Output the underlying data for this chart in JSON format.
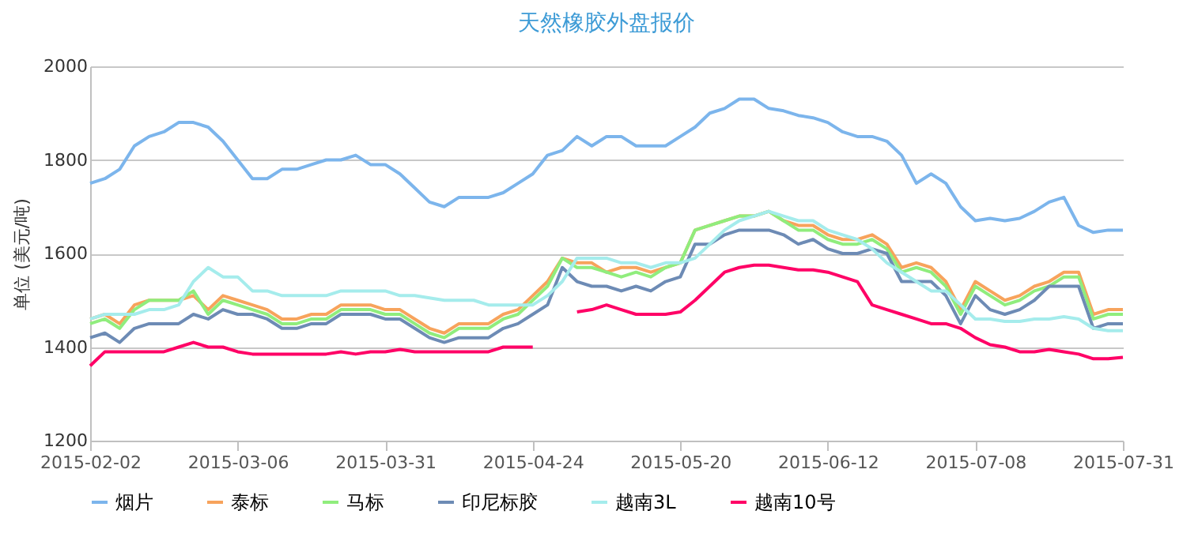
{
  "chart_data": {
    "type": "line",
    "title": "天然橡胶外盘报价",
    "ylabel": "单位 (美元/吨)",
    "categories": [
      "2015-02-02",
      null,
      null,
      null,
      null,
      null,
      null,
      null,
      null,
      null,
      "2015-03-06",
      null,
      null,
      null,
      null,
      null,
      null,
      null,
      null,
      null,
      "2015-03-31",
      null,
      null,
      null,
      null,
      null,
      null,
      null,
      null,
      null,
      "2015-04-24",
      null,
      null,
      null,
      null,
      null,
      null,
      null,
      null,
      null,
      "2015-05-20",
      null,
      null,
      null,
      null,
      null,
      null,
      null,
      null,
      null,
      "2015-06-12",
      null,
      null,
      null,
      null,
      null,
      null,
      null,
      null,
      null,
      "2015-07-08",
      null,
      null,
      null,
      null,
      null,
      null,
      null,
      null,
      null,
      "2015-07-31"
    ],
    "ylim": [
      1200,
      2000
    ],
    "yticks": [
      1200,
      1400,
      1600,
      1800,
      2000
    ],
    "grid": "y",
    "legend": "bottom",
    "marker": "none",
    "line_style": "solid",
    "series": [
      {
        "name": "烟片",
        "color": "#7cb5ec",
        "values": [
          1750,
          1760,
          1780,
          1830,
          1850,
          1860,
          1880,
          1880,
          1870,
          1840,
          1800,
          1760,
          1760,
          1780,
          1780,
          1790,
          1800,
          1800,
          1810,
          1790,
          1790,
          1770,
          1740,
          1710,
          1700,
          1720,
          1720,
          1720,
          1730,
          1750,
          1770,
          1810,
          1820,
          1850,
          1830,
          1850,
          1850,
          1830,
          1830,
          1830,
          1850,
          1870,
          1900,
          1910,
          1930,
          1930,
          1910,
          1905,
          1895,
          1890,
          1880,
          1860,
          1850,
          1850,
          1840,
          1810,
          1750,
          1770,
          1750,
          1700,
          1670,
          1675,
          1670,
          1675,
          1690,
          1710,
          1720,
          1660,
          1645,
          1650,
          1650
        ]
      },
      {
        "name": "泰标",
        "color": "#f7a35c",
        "values": [
          1460,
          1470,
          1450,
          1490,
          1500,
          1500,
          1500,
          1510,
          1480,
          1510,
          1500,
          1490,
          1480,
          1460,
          1460,
          1470,
          1470,
          1490,
          1490,
          1490,
          1480,
          1480,
          1460,
          1440,
          1430,
          1450,
          1450,
          1450,
          1470,
          1480,
          1510,
          1540,
          1590,
          1580,
          1580,
          1560,
          1570,
          1570,
          1560,
          1570,
          1580,
          1650,
          1660,
          1670,
          1680,
          1680,
          1690,
          1670,
          1660,
          1660,
          1640,
          1630,
          1630,
          1640,
          1620,
          1570,
          1580,
          1570,
          1540,
          1480,
          1540,
          1520,
          1500,
          1510,
          1530,
          1540,
          1560,
          1560,
          1470,
          1480,
          1480
        ]
      },
      {
        "name": "马标",
        "color": "#90ed7d",
        "values": [
          1450,
          1460,
          1440,
          1480,
          1500,
          1500,
          1500,
          1520,
          1470,
          1500,
          1490,
          1480,
          1470,
          1450,
          1450,
          1460,
          1460,
          1480,
          1480,
          1480,
          1470,
          1470,
          1450,
          1430,
          1420,
          1440,
          1440,
          1440,
          1460,
          1470,
          1500,
          1530,
          1590,
          1570,
          1570,
          1560,
          1550,
          1560,
          1550,
          1570,
          1580,
          1650,
          1660,
          1670,
          1680,
          1680,
          1690,
          1670,
          1650,
          1650,
          1630,
          1620,
          1620,
          1630,
          1610,
          1560,
          1570,
          1560,
          1530,
          1470,
          1530,
          1510,
          1490,
          1500,
          1520,
          1530,
          1550,
          1550,
          1460,
          1470,
          1470
        ]
      },
      {
        "name": "印尼标胶",
        "color": "#6d8bb5",
        "values": [
          1420,
          1430,
          1410,
          1440,
          1450,
          1450,
          1450,
          1470,
          1460,
          1480,
          1470,
          1470,
          1460,
          1440,
          1440,
          1450,
          1450,
          1470,
          1470,
          1470,
          1460,
          1460,
          1440,
          1420,
          1410,
          1420,
          1420,
          1420,
          1440,
          1450,
          1470,
          1490,
          1570,
          1540,
          1530,
          1530,
          1520,
          1530,
          1520,
          1540,
          1550,
          1620,
          1620,
          1640,
          1650,
          1650,
          1650,
          1640,
          1620,
          1630,
          1610,
          1600,
          1600,
          1610,
          1600,
          1540,
          1540,
          1540,
          1510,
          1450,
          1510,
          1480,
          1470,
          1480,
          1500,
          1530,
          1530,
          1530,
          1440,
          1450,
          1450
        ]
      },
      {
        "name": "越南3L",
        "color": "#a5ecec",
        "values": [
          1460,
          1470,
          1470,
          1470,
          1480,
          1480,
          1490,
          1540,
          1570,
          1550,
          1550,
          1520,
          1520,
          1510,
          1510,
          1510,
          1510,
          1520,
          1520,
          1520,
          1520,
          1510,
          1510,
          1505,
          1500,
          1500,
          1500,
          1490,
          1490,
          1490,
          1490,
          1510,
          1540,
          1590,
          1590,
          1590,
          1580,
          1580,
          1570,
          1580,
          1580,
          1590,
          1620,
          1650,
          1670,
          1680,
          1690,
          1680,
          1670,
          1670,
          1650,
          1640,
          1630,
          1610,
          1580,
          1560,
          1540,
          1520,
          1520,
          1490,
          1460,
          1460,
          1455,
          1455,
          1460,
          1460,
          1465,
          1460,
          1440,
          1435,
          1435
        ]
      },
      {
        "name": "越南10号",
        "color": "#ff0066",
        "values": [
          1360,
          1390,
          1390,
          1390,
          1390,
          1390,
          1400,
          1410,
          1400,
          1400,
          1390,
          1385,
          1385,
          1385,
          1385,
          1385,
          1385,
          1390,
          1385,
          1390,
          1390,
          1395,
          1390,
          1390,
          1390,
          1390,
          1390,
          1390,
          1400,
          1400,
          1400,
          null,
          null,
          1475,
          1480,
          1490,
          1480,
          1470,
          1470,
          1470,
          1475,
          1500,
          1530,
          1560,
          1570,
          1575,
          1575,
          1570,
          1565,
          1565,
          1560,
          1550,
          1540,
          1490,
          1480,
          1470,
          1460,
          1450,
          1450,
          1440,
          1420,
          1405,
          1400,
          1390,
          1390,
          1395,
          1390,
          1385,
          1375,
          1375,
          1378
        ]
      }
    ]
  }
}
